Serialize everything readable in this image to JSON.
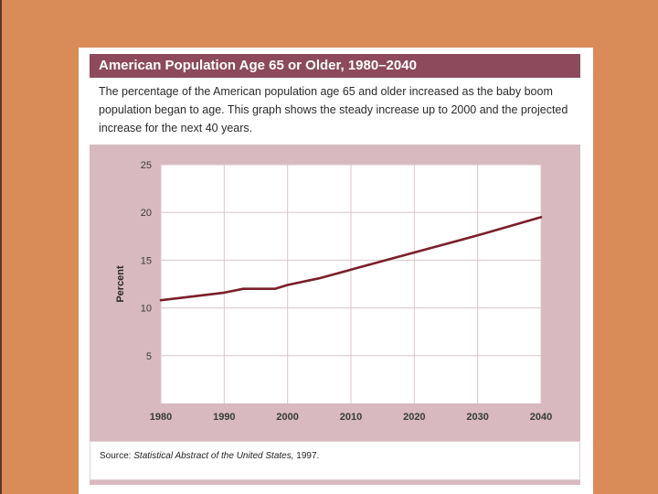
{
  "title": "American Population Age 65 or Older, 1980–2040",
  "description": "The percentage of the American population age 65 and older increased as the baby boom population began to age. This graph shows the steady increase up to 2000 and the projected increase for the next 40 years.",
  "source": {
    "prefix": "Source: ",
    "title": "Statistical Abstract of the United States,",
    "year": " 1997."
  },
  "colors": {
    "background": "#d98b58",
    "accent": "#8c4a5c",
    "line": "#7a1f2a",
    "plot_panel": "#d7b9bf"
  },
  "chart_data": {
    "type": "line",
    "title": "American Population Age 65 or Older, 1980–2040",
    "xlabel": "",
    "ylabel": "Percent",
    "xlim": [
      1980,
      2040
    ],
    "ylim": [
      0,
      25
    ],
    "x_ticks": [
      1980,
      1990,
      2000,
      2010,
      2020,
      2030,
      2040
    ],
    "y_ticks": [
      5,
      10,
      15,
      20,
      25
    ],
    "grid": true,
    "series": [
      {
        "name": "Percent age 65 or older",
        "x": [
          1980,
          1985,
          1990,
          1993,
          1996,
          1998,
          2000,
          2005,
          2010,
          2020,
          2030,
          2040
        ],
        "y": [
          10.8,
          11.2,
          11.6,
          12.0,
          12.0,
          12.0,
          12.4,
          13.1,
          14.0,
          15.8,
          17.6,
          19.5
        ]
      }
    ]
  }
}
